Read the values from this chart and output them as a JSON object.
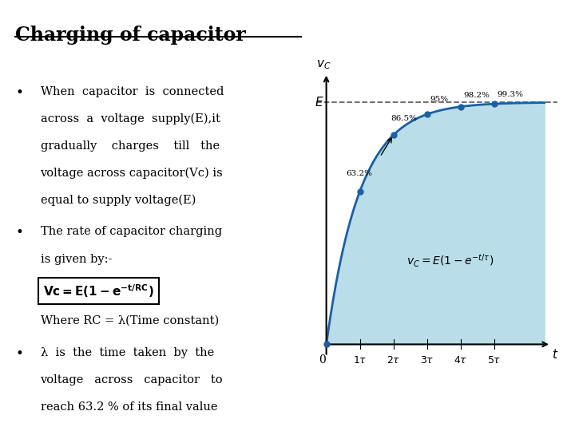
{
  "title": "Charging of capacitor",
  "background_color": "#ffffff",
  "bullet1_lines": [
    "When  capacitor  is  connected",
    "across  a  voltage  supply(E),it",
    "gradually    charges    till   the",
    "voltage across capacitor(Vc) is",
    "equal to supply voltage(E)"
  ],
  "bullet2_lines": [
    "The rate of capacitor charging",
    "is given by:-"
  ],
  "where_line": "Where RC = λ(Time constant)",
  "bullet3_lines": [
    "λ  is  the  time  taken  by  the",
    "voltage   across   capacitor   to",
    "reach 63.2 % of its final value"
  ],
  "curve_color": "#1a5fa8",
  "fill_color": "#add8e6",
  "dashed_color": "#666666",
  "dot_color": "#1a5fa8",
  "tau_values": [
    1,
    2,
    3,
    4,
    5
  ],
  "percentages": [
    "63.2%",
    "86.5%",
    "95%",
    "98.2%",
    "99.3%"
  ],
  "E_value": 1.0,
  "tau_max": 6.5
}
